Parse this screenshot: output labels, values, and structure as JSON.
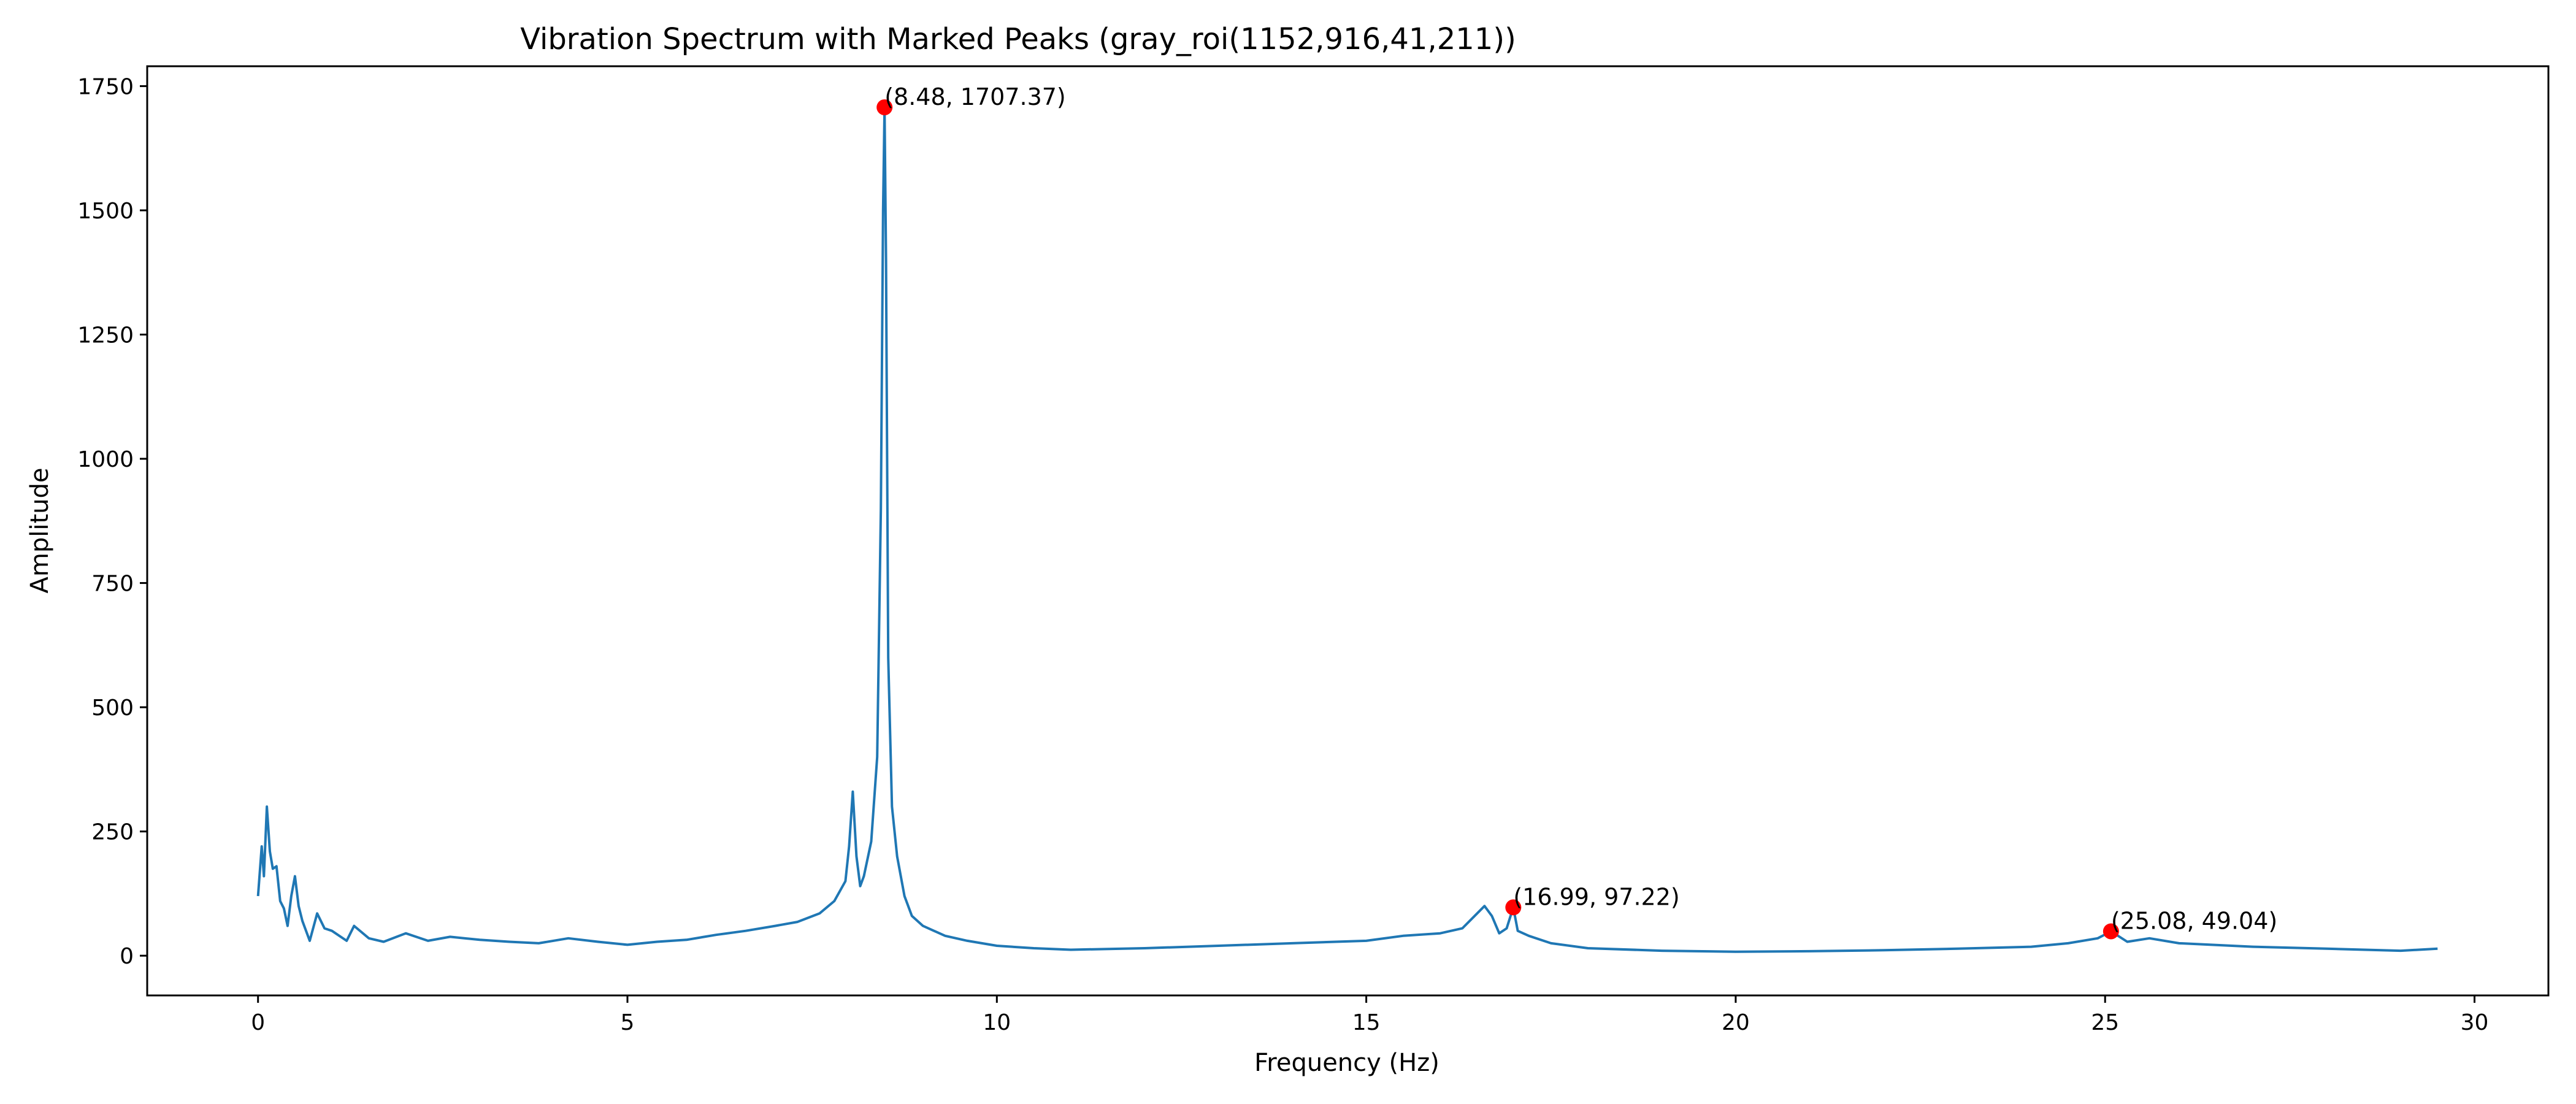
{
  "chart_data": {
    "type": "line",
    "title": "Vibration Spectrum with Marked Peaks (gray_roi(1152,916,41,211))",
    "xlabel": "Frequency (Hz)",
    "ylabel": "Amplitude",
    "xlim": [
      -1.5,
      31.0
    ],
    "ylim": [
      -80,
      1790
    ],
    "xticks": [
      0,
      5,
      10,
      15,
      20,
      25,
      30
    ],
    "yticks": [
      0,
      250,
      500,
      750,
      1000,
      1250,
      1500,
      1750
    ],
    "grid": false,
    "legend": "none",
    "series": [
      {
        "color": "#1f77b4",
        "points": [
          [
            0.0,
            120
          ],
          [
            0.05,
            220
          ],
          [
            0.08,
            160
          ],
          [
            0.12,
            300
          ],
          [
            0.16,
            210
          ],
          [
            0.2,
            175
          ],
          [
            0.25,
            180
          ],
          [
            0.3,
            110
          ],
          [
            0.35,
            95
          ],
          [
            0.4,
            60
          ],
          [
            0.45,
            120
          ],
          [
            0.5,
            160
          ],
          [
            0.55,
            100
          ],
          [
            0.6,
            70
          ],
          [
            0.7,
            30
          ],
          [
            0.8,
            85
          ],
          [
            0.9,
            55
          ],
          [
            1.0,
            50
          ],
          [
            1.2,
            30
          ],
          [
            1.3,
            60
          ],
          [
            1.5,
            35
          ],
          [
            1.7,
            28
          ],
          [
            2.0,
            45
          ],
          [
            2.3,
            30
          ],
          [
            2.6,
            38
          ],
          [
            3.0,
            32
          ],
          [
            3.4,
            28
          ],
          [
            3.8,
            25
          ],
          [
            4.2,
            35
          ],
          [
            4.6,
            28
          ],
          [
            5.0,
            22
          ],
          [
            5.4,
            28
          ],
          [
            5.8,
            32
          ],
          [
            6.2,
            42
          ],
          [
            6.6,
            50
          ],
          [
            7.0,
            60
          ],
          [
            7.3,
            68
          ],
          [
            7.6,
            85
          ],
          [
            7.8,
            110
          ],
          [
            7.95,
            150
          ],
          [
            8.0,
            220
          ],
          [
            8.05,
            330
          ],
          [
            8.1,
            200
          ],
          [
            8.15,
            140
          ],
          [
            8.2,
            160
          ],
          [
            8.3,
            230
          ],
          [
            8.38,
            400
          ],
          [
            8.43,
            900
          ],
          [
            8.46,
            1500
          ],
          [
            8.48,
            1707.37
          ],
          [
            8.5,
            1400
          ],
          [
            8.53,
            600
          ],
          [
            8.58,
            300
          ],
          [
            8.65,
            200
          ],
          [
            8.75,
            120
          ],
          [
            8.85,
            80
          ],
          [
            9.0,
            60
          ],
          [
            9.3,
            40
          ],
          [
            9.6,
            30
          ],
          [
            10.0,
            20
          ],
          [
            10.5,
            15
          ],
          [
            11.0,
            12
          ],
          [
            12.0,
            15
          ],
          [
            13.0,
            20
          ],
          [
            14.0,
            25
          ],
          [
            15.0,
            30
          ],
          [
            15.5,
            40
          ],
          [
            16.0,
            45
          ],
          [
            16.3,
            55
          ],
          [
            16.6,
            100
          ],
          [
            16.7,
            80
          ],
          [
            16.8,
            45
          ],
          [
            16.9,
            55
          ],
          [
            16.99,
            97.22
          ],
          [
            17.05,
            50
          ],
          [
            17.2,
            40
          ],
          [
            17.5,
            25
          ],
          [
            18.0,
            15
          ],
          [
            19.0,
            10
          ],
          [
            20.0,
            8
          ],
          [
            21.0,
            9
          ],
          [
            22.0,
            11
          ],
          [
            23.0,
            14
          ],
          [
            24.0,
            18
          ],
          [
            24.5,
            25
          ],
          [
            24.9,
            35
          ],
          [
            25.08,
            49.04
          ],
          [
            25.3,
            28
          ],
          [
            25.6,
            35
          ],
          [
            26.0,
            25
          ],
          [
            27.0,
            18
          ],
          [
            28.0,
            14
          ],
          [
            29.0,
            10
          ],
          [
            29.5,
            14
          ]
        ]
      }
    ],
    "peaks": [
      {
        "x": 8.48,
        "y": 1707.37,
        "label": "(8.48, 1707.37)"
      },
      {
        "x": 16.99,
        "y": 97.22,
        "label": "(16.99, 97.22)"
      },
      {
        "x": 25.08,
        "y": 49.04,
        "label": "(25.08, 49.04)"
      }
    ],
    "marker_color": "#ff0000"
  }
}
